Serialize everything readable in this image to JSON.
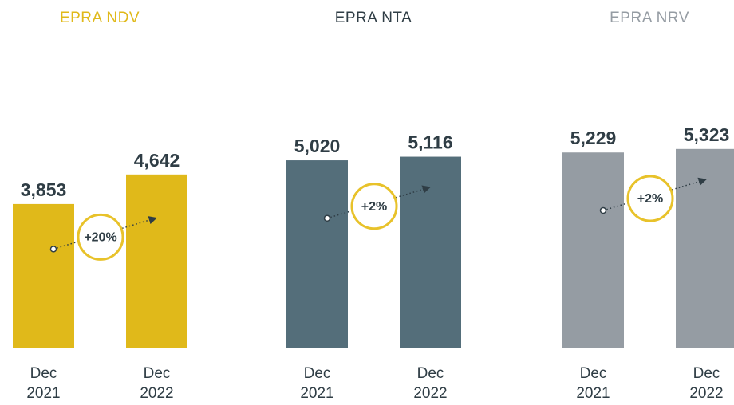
{
  "chart_data": [
    {
      "type": "bar",
      "title": "EPRA NDV",
      "categories": [
        "Dec 2021",
        "Dec 2022"
      ],
      "values": [
        3853,
        4642
      ],
      "value_labels": [
        "3,853",
        "4,642"
      ],
      "color": "#e0b91a",
      "annotation": "+20%",
      "ylim": [
        0,
        9000
      ]
    },
    {
      "type": "bar",
      "title": "EPRA NTA",
      "categories": [
        "Dec 2021",
        "Dec 2022"
      ],
      "values": [
        5020,
        5116
      ],
      "value_labels": [
        "5,020",
        "5,116"
      ],
      "color": "#546e7a",
      "annotation": "+2%",
      "ylim": [
        0,
        9000
      ]
    },
    {
      "type": "bar",
      "title": "EPRA NRV",
      "categories": [
        "Dec 2021",
        "Dec 2022"
      ],
      "values": [
        5229,
        5323
      ],
      "value_labels": [
        "5,229",
        "5,323"
      ],
      "color": "#959ca3",
      "annotation": "+2%",
      "ylim": [
        0,
        9000
      ]
    }
  ]
}
